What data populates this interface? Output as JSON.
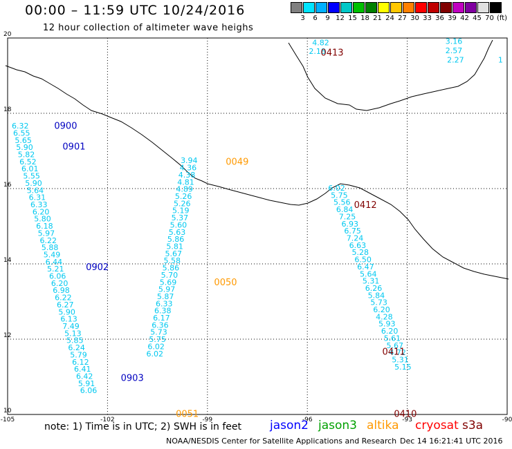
{
  "header": {
    "title": "00:00 – 11:59 UTC 10/24/2016",
    "subtitle": "12 hour collection of altimeter wave heighs"
  },
  "legend": {
    "unit": "(ft)",
    "colors": [
      "#808080",
      "#00e5ff",
      "#00b0ff",
      "#0000ff",
      "#00c8c8",
      "#00c000",
      "#008000",
      "#ffff00",
      "#ffc800",
      "#ff8000",
      "#ff0000",
      "#c00000",
      "#800000",
      "#c000c0",
      "#8000a0",
      "#e0e0e0",
      "#000000"
    ],
    "labels": [
      "3",
      "6",
      "9",
      "12",
      "15",
      "18",
      "21",
      "24",
      "27",
      "30",
      "33",
      "36",
      "39",
      "42",
      "45",
      "70",
      "(ft)"
    ]
  },
  "footer": {
    "note": "note: 1) Time is in UTC; 2) SWH is in feet",
    "credit": "NOAA/NESDIS Center for Satellite Applications and Research",
    "timestamp": "Dec 14 16:21:41 UTC 2016",
    "satellites": [
      {
        "name": "jason2",
        "color": "#0000ff"
      },
      {
        "name": "jason3",
        "color": "#00a000"
      },
      {
        "name": "altika",
        "color": "#ff9900"
      },
      {
        "name": "cryosat",
        "color": "#ff0000"
      },
      {
        "name": "s3a",
        "color": "#800000"
      }
    ]
  },
  "chart_data": {
    "type": "scatter",
    "title": "00:00 – 11:59 UTC 10/24/2016",
    "subtitle": "12 hour collection of altimeter wave heighs",
    "xlim": [
      -105,
      -90
    ],
    "ylim": [
      10,
      20
    ],
    "xticks": [
      -105,
      -102,
      -99,
      -96,
      -93,
      -90
    ],
    "xtick_labels": [
      "-105",
      "-102",
      "-99",
      "-96",
      "-93",
      "-90"
    ],
    "yticks": [
      10,
      12,
      14,
      16,
      18,
      20
    ],
    "ytick_labels": [
      "10",
      "12",
      "14",
      "16",
      "18",
      "20"
    ],
    "grid": true,
    "value_color": "#00c8f0",
    "time_labels": [
      {
        "text": "0900",
        "lon": -103.6,
        "lat": 17.65,
        "color": "#0000c0"
      },
      {
        "text": "0901",
        "lon": -103.35,
        "lat": 17.1,
        "color": "#0000c0"
      },
      {
        "text": "0902",
        "lon": -102.65,
        "lat": 13.9,
        "color": "#0000c0"
      },
      {
        "text": "0903",
        "lon": -101.6,
        "lat": 10.95,
        "color": "#0000c0"
      },
      {
        "text": "0049",
        "lon": -98.45,
        "lat": 16.7,
        "color": "#ff9900"
      },
      {
        "text": "0050",
        "lon": -98.8,
        "lat": 13.5,
        "color": "#ff9900"
      },
      {
        "text": "0051",
        "lon": -99.95,
        "lat": 10.0,
        "color": "#ff9900"
      },
      {
        "text": "0413",
        "lon": -95.6,
        "lat": 19.6,
        "color": "#800000"
      },
      {
        "text": "0412",
        "lon": -94.6,
        "lat": 15.55,
        "color": "#800000"
      },
      {
        "text": "0411",
        "lon": -93.75,
        "lat": 11.65,
        "color": "#800000"
      },
      {
        "text": "0410",
        "lon": -93.4,
        "lat": 10.0,
        "color": "#800000"
      }
    ],
    "series": [
      {
        "name": "jason2",
        "points": [
          {
            "lon": -104.62,
            "lat": 17.65,
            "v": "6.32"
          },
          {
            "lon": -104.58,
            "lat": 17.46,
            "v": "6.55"
          },
          {
            "lon": -104.53,
            "lat": 17.27,
            "v": "5.65"
          },
          {
            "lon": -104.49,
            "lat": 17.08,
            "v": "5.90"
          },
          {
            "lon": -104.44,
            "lat": 16.89,
            "v": "5.82"
          },
          {
            "lon": -104.39,
            "lat": 16.7,
            "v": "6.52"
          },
          {
            "lon": -104.33,
            "lat": 16.51,
            "v": "6.01"
          },
          {
            "lon": -104.28,
            "lat": 16.32,
            "v": "5.55"
          },
          {
            "lon": -104.22,
            "lat": 16.13,
            "v": "5.90"
          },
          {
            "lon": -104.17,
            "lat": 15.94,
            "v": "5.64"
          },
          {
            "lon": -104.11,
            "lat": 15.75,
            "v": "6.31"
          },
          {
            "lon": -104.06,
            "lat": 15.56,
            "v": "6.33"
          },
          {
            "lon": -104.0,
            "lat": 15.37,
            "v": "6.20"
          },
          {
            "lon": -103.95,
            "lat": 15.18,
            "v": "5.80"
          },
          {
            "lon": -103.89,
            "lat": 14.99,
            "v": "6.18"
          },
          {
            "lon": -103.84,
            "lat": 14.8,
            "v": "5.97"
          },
          {
            "lon": -103.78,
            "lat": 14.61,
            "v": "6.22"
          },
          {
            "lon": -103.73,
            "lat": 14.42,
            "v": "5.88"
          },
          {
            "lon": -103.67,
            "lat": 14.23,
            "v": "5.49"
          },
          {
            "lon": -103.61,
            "lat": 14.04,
            "v": "6.44"
          },
          {
            "lon": -103.56,
            "lat": 13.85,
            "v": "5.21"
          },
          {
            "lon": -103.5,
            "lat": 13.66,
            "v": "6.06"
          },
          {
            "lon": -103.44,
            "lat": 13.47,
            "v": "6.20"
          },
          {
            "lon": -103.39,
            "lat": 13.28,
            "v": "6.98"
          },
          {
            "lon": -103.33,
            "lat": 13.09,
            "v": "6.22"
          },
          {
            "lon": -103.27,
            "lat": 12.9,
            "v": "6.27"
          },
          {
            "lon": -103.22,
            "lat": 12.71,
            "v": "5.90"
          },
          {
            "lon": -103.16,
            "lat": 12.52,
            "v": "6.13"
          },
          {
            "lon": -103.1,
            "lat": 12.33,
            "v": "7.49"
          },
          {
            "lon": -103.04,
            "lat": 12.14,
            "v": "5.13"
          },
          {
            "lon": -102.98,
            "lat": 11.95,
            "v": "5.85"
          },
          {
            "lon": -102.93,
            "lat": 11.76,
            "v": "6.24"
          },
          {
            "lon": -102.87,
            "lat": 11.57,
            "v": "5.79"
          },
          {
            "lon": -102.81,
            "lat": 11.38,
            "v": "6.12"
          },
          {
            "lon": -102.75,
            "lat": 11.19,
            "v": "6.41"
          },
          {
            "lon": -102.69,
            "lat": 11.0,
            "v": "6.42"
          },
          {
            "lon": -102.63,
            "lat": 10.81,
            "v": "5.91"
          },
          {
            "lon": -102.57,
            "lat": 10.62,
            "v": "6.06"
          }
        ]
      },
      {
        "name": "altika",
        "points": [
          {
            "lon": -99.55,
            "lat": 16.73,
            "v": "3.94"
          },
          {
            "lon": -99.58,
            "lat": 16.54,
            "v": "4.36"
          },
          {
            "lon": -99.62,
            "lat": 16.35,
            "v": "4.38"
          },
          {
            "lon": -99.65,
            "lat": 16.16,
            "v": "4.81"
          },
          {
            "lon": -99.69,
            "lat": 15.97,
            "v": "4.89"
          },
          {
            "lon": -99.72,
            "lat": 15.78,
            "v": "5.26"
          },
          {
            "lon": -99.76,
            "lat": 15.59,
            "v": "5.26"
          },
          {
            "lon": -99.8,
            "lat": 15.4,
            "v": "5.19"
          },
          {
            "lon": -99.83,
            "lat": 15.21,
            "v": "5.37"
          },
          {
            "lon": -99.87,
            "lat": 15.02,
            "v": "5.60"
          },
          {
            "lon": -99.91,
            "lat": 14.83,
            "v": "5.63"
          },
          {
            "lon": -99.95,
            "lat": 14.64,
            "v": "5.86"
          },
          {
            "lon": -99.98,
            "lat": 14.45,
            "v": "5.81"
          },
          {
            "lon": -100.02,
            "lat": 14.26,
            "v": "5.67"
          },
          {
            "lon": -100.06,
            "lat": 14.07,
            "v": "5.58"
          },
          {
            "lon": -100.1,
            "lat": 13.88,
            "v": "5.86"
          },
          {
            "lon": -100.14,
            "lat": 13.69,
            "v": "5.70"
          },
          {
            "lon": -100.18,
            "lat": 13.5,
            "v": "5.69"
          },
          {
            "lon": -100.22,
            "lat": 13.31,
            "v": "5.97"
          },
          {
            "lon": -100.26,
            "lat": 13.12,
            "v": "5.87"
          },
          {
            "lon": -100.3,
            "lat": 12.93,
            "v": "6.33"
          },
          {
            "lon": -100.34,
            "lat": 12.74,
            "v": "6.38"
          },
          {
            "lon": -100.38,
            "lat": 12.55,
            "v": "6.17"
          },
          {
            "lon": -100.42,
            "lat": 12.36,
            "v": "6.36"
          },
          {
            "lon": -100.46,
            "lat": 12.17,
            "v": "5.73"
          },
          {
            "lon": -100.5,
            "lat": 11.98,
            "v": "5.75"
          },
          {
            "lon": -100.54,
            "lat": 11.79,
            "v": "6.02"
          },
          {
            "lon": -100.58,
            "lat": 11.6,
            "v": "6.02"
          }
        ]
      },
      {
        "name": "cryosat",
        "points": [
          {
            "lon": -95.6,
            "lat": 19.86,
            "v": "4.82"
          },
          {
            "lon": -95.7,
            "lat": 19.63,
            "v": "2.18"
          },
          {
            "lon": -91.6,
            "lat": 19.9,
            "v": "3.16"
          },
          {
            "lon": -91.6,
            "lat": 19.65,
            "v": "2.57"
          },
          {
            "lon": -91.55,
            "lat": 19.4,
            "v": "2.27"
          },
          {
            "lon": -90.2,
            "lat": 19.4,
            "v": "1"
          },
          {
            "lon": -95.12,
            "lat": 16.0,
            "v": "6.02"
          },
          {
            "lon": -95.04,
            "lat": 15.81,
            "v": "5.75"
          },
          {
            "lon": -94.96,
            "lat": 15.62,
            "v": "5.56"
          },
          {
            "lon": -94.88,
            "lat": 15.43,
            "v": "6.84"
          },
          {
            "lon": -94.8,
            "lat": 15.24,
            "v": "7.25"
          },
          {
            "lon": -94.72,
            "lat": 15.05,
            "v": "6.93"
          },
          {
            "lon": -94.64,
            "lat": 14.86,
            "v": "6.75"
          },
          {
            "lon": -94.57,
            "lat": 14.67,
            "v": "7.24"
          },
          {
            "lon": -94.49,
            "lat": 14.48,
            "v": "6.63"
          },
          {
            "lon": -94.41,
            "lat": 14.29,
            "v": "5.28"
          },
          {
            "lon": -94.33,
            "lat": 14.1,
            "v": "6.50"
          },
          {
            "lon": -94.25,
            "lat": 13.91,
            "v": "6.47"
          },
          {
            "lon": -94.17,
            "lat": 13.72,
            "v": "5.64"
          },
          {
            "lon": -94.09,
            "lat": 13.53,
            "v": "5.31"
          },
          {
            "lon": -94.01,
            "lat": 13.34,
            "v": "6.26"
          },
          {
            "lon": -93.93,
            "lat": 13.15,
            "v": "5.84"
          },
          {
            "lon": -93.85,
            "lat": 12.96,
            "v": "5.73"
          },
          {
            "lon": -93.77,
            "lat": 12.77,
            "v": "6.20"
          },
          {
            "lon": -93.69,
            "lat": 12.58,
            "v": "4.28"
          },
          {
            "lon": -93.61,
            "lat": 12.39,
            "v": "5.93"
          },
          {
            "lon": -93.53,
            "lat": 12.2,
            "v": "6.20"
          },
          {
            "lon": -93.45,
            "lat": 12.01,
            "v": "5.61"
          },
          {
            "lon": -93.37,
            "lat": 11.82,
            "v": "5.67"
          },
          {
            "lon": -93.29,
            "lat": 11.63,
            "v": "4.72"
          },
          {
            "lon": -93.21,
            "lat": 11.44,
            "v": "5.31"
          },
          {
            "lon": -93.13,
            "lat": 11.25,
            "v": "5.15"
          }
        ]
      }
    ]
  }
}
